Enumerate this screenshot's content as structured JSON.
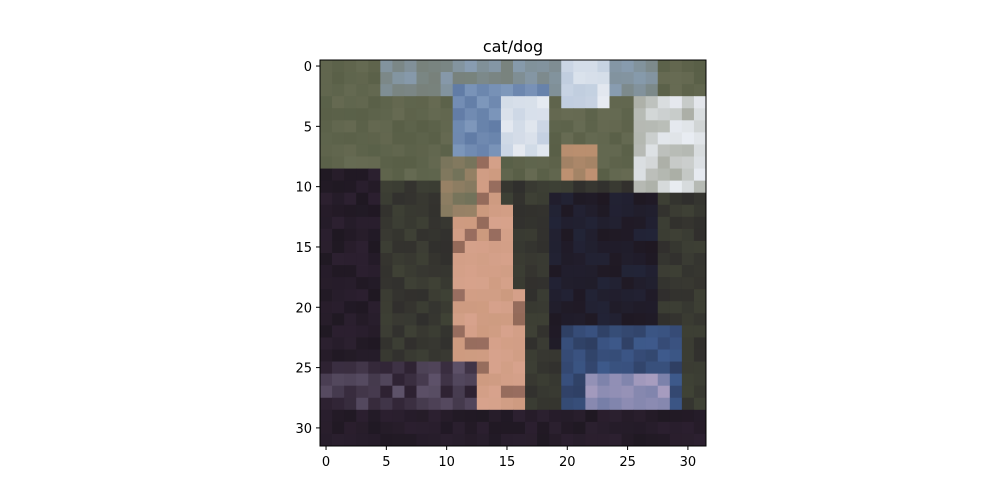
{
  "title": "cat/dog",
  "image": {
    "description": "32x32 pixelated low-resolution photo",
    "rows": 32,
    "cols": 32
  },
  "axes": {
    "x_ticks": [
      0,
      5,
      10,
      15,
      20,
      25,
      30
    ],
    "y_ticks": [
      0,
      5,
      10,
      15,
      20,
      25,
      30
    ],
    "x_range": [
      -0.5,
      31.5
    ],
    "y_range": [
      -0.5,
      31.5
    ]
  },
  "palette": {
    "dark": "#1f1822",
    "dark_purple": "#2c2030",
    "olive": "#505840",
    "gray_green": "#6d7058",
    "sky": "#8fa8c8",
    "white": "#e8ecf2",
    "tan": "#c49474",
    "skin": "#d7a28c",
    "navy": "#26304c",
    "blue": "#3e5a8c",
    "lavender": "#a89ec0",
    "brown": "#5a3a34"
  }
}
